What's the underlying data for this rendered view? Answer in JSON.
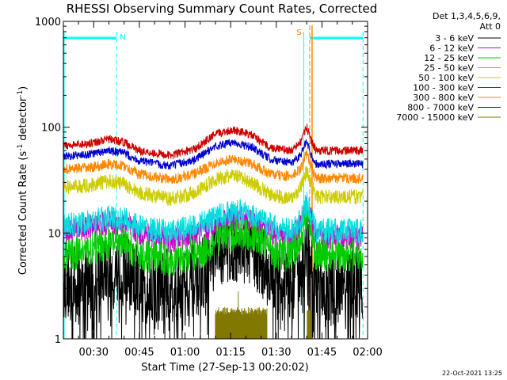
{
  "chart_data": {
    "type": "line",
    "title": "RHESSI Observing Summary Count Rates, Corrected",
    "xlabel": "Start Time (27-Sep-13 00:20:02)",
    "ylabel_main": "Corrected Count Rate (s",
    "ylabel_sup1": "-1",
    "ylabel_mid": " detector",
    "ylabel_sup2": "-1",
    "ylabel_end": ")",
    "stamp": "22-Oct-2021 13:25",
    "y_scale": "log",
    "ylim": [
      1,
      1000
    ],
    "xlim_minutes": [
      20.03,
      120
    ],
    "x_ticks": [
      {
        "label": "00:30",
        "min": 30
      },
      {
        "label": "00:45",
        "min": 45
      },
      {
        "label": "01:00",
        "min": 60
      },
      {
        "label": "01:15",
        "min": 75
      },
      {
        "label": "01:30",
        "min": 90
      },
      {
        "label": "01:45",
        "min": 105
      },
      {
        "label": "02:00",
        "min": 120
      }
    ],
    "y_ticks": [
      {
        "label": "1",
        "value": 1
      },
      {
        "label": "10",
        "value": 10
      },
      {
        "label": "100",
        "value": 100
      },
      {
        "label": "1000",
        "value": 1000
      }
    ],
    "legend_header": [
      "Det 1,3,4,5,6,9,",
      "Att 0"
    ],
    "legend_placement": "right",
    "series": [
      {
        "name": "3 - 6 keV",
        "color": "#000000",
        "base": [
          [
            20,
            3.3
          ],
          [
            28,
            3.6
          ],
          [
            35,
            4.6
          ],
          [
            40,
            4.6
          ],
          [
            45,
            3.4
          ],
          [
            55,
            3.2
          ],
          [
            63,
            3.5
          ],
          [
            68,
            5
          ],
          [
            72,
            7
          ],
          [
            78,
            7.5
          ],
          [
            82,
            7
          ],
          [
            86,
            5
          ],
          [
            90,
            3.6
          ],
          [
            95,
            3.3
          ],
          [
            98,
            5
          ],
          [
            100,
            8
          ],
          [
            101,
            6
          ],
          [
            103,
            3.3
          ],
          [
            118,
            3.3
          ]
        ],
        "noise": 0.35,
        "extra": "gappy"
      },
      {
        "name": "6 - 12 keV",
        "color": "#cc00cc",
        "base": [
          [
            20,
            10
          ],
          [
            28,
            11
          ],
          [
            35,
            12.5
          ],
          [
            40,
            12
          ],
          [
            45,
            10
          ],
          [
            55,
            8.5
          ],
          [
            65,
            10
          ],
          [
            72,
            13
          ],
          [
            78,
            14
          ],
          [
            84,
            12
          ],
          [
            90,
            9.5
          ],
          [
            95,
            9
          ],
          [
            98,
            12
          ],
          [
            100,
            18
          ],
          [
            101.5,
            13
          ],
          [
            103,
            9
          ],
          [
            118,
            9
          ]
        ],
        "noise": 0.12
      },
      {
        "name": "12 - 25 keV",
        "color": "#00cc00",
        "base": [
          [
            20,
            6
          ],
          [
            28,
            6.8
          ],
          [
            35,
            8
          ],
          [
            40,
            7.8
          ],
          [
            45,
            6.2
          ],
          [
            55,
            5.6
          ],
          [
            65,
            6.5
          ],
          [
            72,
            9
          ],
          [
            78,
            10
          ],
          [
            84,
            9
          ],
          [
            90,
            6.5
          ],
          [
            95,
            6
          ],
          [
            98,
            9
          ],
          [
            100,
            15
          ],
          [
            101.5,
            10
          ],
          [
            103,
            6.2
          ],
          [
            118,
            6.2
          ]
        ],
        "noise": 0.16
      },
      {
        "name": "25 - 50 keV",
        "color": "#00dddd",
        "base": [
          [
            20,
            11.5
          ],
          [
            28,
            12.5
          ],
          [
            35,
            14
          ],
          [
            40,
            13.5
          ],
          [
            45,
            11.5
          ],
          [
            55,
            10
          ],
          [
            65,
            12
          ],
          [
            72,
            15
          ],
          [
            78,
            16
          ],
          [
            84,
            14
          ],
          [
            90,
            11
          ],
          [
            95,
            10.5
          ],
          [
            98,
            13
          ],
          [
            100,
            19
          ],
          [
            101.5,
            14
          ],
          [
            103,
            10.5
          ],
          [
            118,
            10.5
          ]
        ],
        "noise": 0.12
      },
      {
        "name": "50 - 100 keV",
        "color": "#cccc00",
        "base": [
          [
            20,
            27
          ],
          [
            28,
            28
          ],
          [
            35,
            31
          ],
          [
            40,
            29
          ],
          [
            45,
            24
          ],
          [
            55,
            21
          ],
          [
            63,
            24
          ],
          [
            70,
            32
          ],
          [
            76,
            35
          ],
          [
            82,
            30
          ],
          [
            88,
            23
          ],
          [
            95,
            21
          ],
          [
            98,
            27
          ],
          [
            100,
            38
          ],
          [
            101.5,
            30
          ],
          [
            103,
            22
          ],
          [
            118,
            22
          ]
        ],
        "noise": 0.07
      },
      {
        "name": "100 - 300 keV",
        "color": "#cc0000",
        "base": [
          [
            20,
            67
          ],
          [
            28,
            70
          ],
          [
            35,
            77
          ],
          [
            40,
            72
          ],
          [
            45,
            60
          ],
          [
            55,
            54
          ],
          [
            63,
            62
          ],
          [
            70,
            86
          ],
          [
            76,
            95
          ],
          [
            82,
            84
          ],
          [
            88,
            64
          ],
          [
            95,
            60
          ],
          [
            98,
            72
          ],
          [
            100,
            100
          ],
          [
            101.5,
            75
          ],
          [
            103,
            60
          ],
          [
            118,
            60
          ]
        ],
        "noise": 0.04
      },
      {
        "name": "300 - 800 keV",
        "color": "#ff8800",
        "base": [
          [
            20,
            40
          ],
          [
            28,
            41
          ],
          [
            35,
            45
          ],
          [
            40,
            43
          ],
          [
            45,
            36
          ],
          [
            55,
            32
          ],
          [
            63,
            36
          ],
          [
            70,
            46
          ],
          [
            76,
            50
          ],
          [
            82,
            45
          ],
          [
            88,
            36
          ],
          [
            95,
            34
          ],
          [
            98,
            40
          ],
          [
            100,
            58
          ],
          [
            101.5,
            42
          ],
          [
            103,
            33
          ],
          [
            118,
            33
          ]
        ],
        "noise": 0.05
      },
      {
        "name": "800 - 7000 keV",
        "color": "#0000cc",
        "base": [
          [
            20,
            53
          ],
          [
            28,
            55
          ],
          [
            35,
            60
          ],
          [
            40,
            57
          ],
          [
            45,
            48
          ],
          [
            55,
            43
          ],
          [
            63,
            49
          ],
          [
            70,
            66
          ],
          [
            76,
            72
          ],
          [
            82,
            64
          ],
          [
            88,
            50
          ],
          [
            95,
            46
          ],
          [
            98,
            55
          ],
          [
            100,
            74
          ],
          [
            101.5,
            55
          ],
          [
            103,
            45
          ],
          [
            118,
            45
          ]
        ],
        "noise": 0.04
      },
      {
        "name": "7000 - 15000 keV",
        "color": "#807800",
        "base": [
          [
            20,
            1
          ],
          [
            118,
            1
          ]
        ],
        "noise": 0,
        "extra": "spikes"
      }
    ],
    "annotations": {
      "night_marker": "N",
      "saa_marker": "S",
      "flare_time_min": 101.5,
      "saa_start_min": 99,
      "night_end_min": 37.5,
      "data_end_min": 118.5
    },
    "colors": {
      "axes": "#000000",
      "cyan_markers": "#00ffff",
      "flare_line": "#ff8800",
      "saa_line": "#ff8800"
    }
  }
}
